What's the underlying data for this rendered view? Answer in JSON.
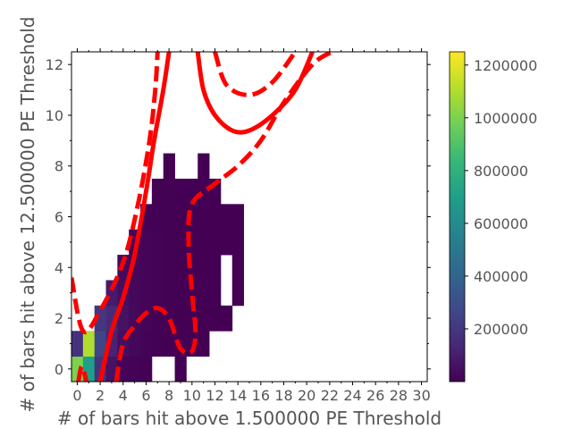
{
  "chart_data": {
    "type": "heatmap",
    "xlabel": "# of bars hit above 1.500000 PE Threshold",
    "ylabel": "# of bars hit above 12.500000 PE Threshold",
    "xlim": [
      -0.5,
      30.5
    ],
    "ylim": [
      -0.5,
      12.5
    ],
    "x_ticks": [
      "0",
      "2",
      "4",
      "6",
      "8",
      "10",
      "12",
      "14",
      "16",
      "18",
      "20",
      "22",
      "24",
      "26",
      "28",
      "30"
    ],
    "y_ticks": [
      "0",
      "2",
      "4",
      "6",
      "8",
      "10",
      "12"
    ],
    "colorbar": {
      "colormap": "viridis",
      "range": [
        0,
        1250000
      ],
      "ticks": [
        "200000",
        "400000",
        "600000",
        "800000",
        "1000000",
        "1200000"
      ]
    },
    "bins": [
      {
        "x": 0,
        "y": 0,
        "v": 1000000
      },
      {
        "x": 1,
        "y": 0,
        "v": 700000
      },
      {
        "x": 2,
        "y": 0,
        "v": 180000
      },
      {
        "x": 3,
        "y": 0,
        "v": 60000
      },
      {
        "x": 4,
        "y": 0,
        "v": 15000
      },
      {
        "x": 5,
        "y": 0,
        "v": 8000
      },
      {
        "x": 6,
        "y": 0,
        "v": 3000
      },
      {
        "x": 9,
        "y": 0,
        "v": 1000
      },
      {
        "x": 0,
        "y": 1,
        "v": 180000
      },
      {
        "x": 1,
        "y": 1,
        "v": 1100000
      },
      {
        "x": 2,
        "y": 1,
        "v": 260000
      },
      {
        "x": 3,
        "y": 1,
        "v": 120000
      },
      {
        "x": 4,
        "y": 1,
        "v": 50000
      },
      {
        "x": 5,
        "y": 1,
        "v": 20000
      },
      {
        "x": 6,
        "y": 1,
        "v": 8000
      },
      {
        "x": 7,
        "y": 1,
        "v": 3000
      },
      {
        "x": 8,
        "y": 1,
        "v": 1500
      },
      {
        "x": 9,
        "y": 1,
        "v": 1000
      },
      {
        "x": 10,
        "y": 1,
        "v": 800
      },
      {
        "x": 11,
        "y": 1,
        "v": 500
      },
      {
        "x": 2,
        "y": 2,
        "v": 200000
      },
      {
        "x": 3,
        "y": 2,
        "v": 150000
      },
      {
        "x": 4,
        "y": 2,
        "v": 60000
      },
      {
        "x": 5,
        "y": 2,
        "v": 30000
      },
      {
        "x": 6,
        "y": 2,
        "v": 12000
      },
      {
        "x": 7,
        "y": 2,
        "v": 5000
      },
      {
        "x": 8,
        "y": 2,
        "v": 2000
      },
      {
        "x": 9,
        "y": 2,
        "v": 1200
      },
      {
        "x": 10,
        "y": 2,
        "v": 700
      },
      {
        "x": 11,
        "y": 2,
        "v": 500
      },
      {
        "x": 12,
        "y": 2,
        "v": 400
      },
      {
        "x": 13,
        "y": 2,
        "v": 300
      },
      {
        "x": 3,
        "y": 3,
        "v": 90000
      },
      {
        "x": 4,
        "y": 3,
        "v": 50000
      },
      {
        "x": 5,
        "y": 3,
        "v": 25000
      },
      {
        "x": 6,
        "y": 3,
        "v": 12000
      },
      {
        "x": 7,
        "y": 3,
        "v": 6000
      },
      {
        "x": 8,
        "y": 3,
        "v": 3000
      },
      {
        "x": 9,
        "y": 3,
        "v": 1500
      },
      {
        "x": 10,
        "y": 3,
        "v": 800
      },
      {
        "x": 11,
        "y": 3,
        "v": 500
      },
      {
        "x": 12,
        "y": 3,
        "v": 400
      },
      {
        "x": 14,
        "y": 3,
        "v": 200
      },
      {
        "x": 4,
        "y": 4,
        "v": 30000
      },
      {
        "x": 5,
        "y": 4,
        "v": 20000
      },
      {
        "x": 6,
        "y": 4,
        "v": 10000
      },
      {
        "x": 7,
        "y": 4,
        "v": 6000
      },
      {
        "x": 8,
        "y": 4,
        "v": 3000
      },
      {
        "x": 9,
        "y": 4,
        "v": 1500
      },
      {
        "x": 10,
        "y": 4,
        "v": 800
      },
      {
        "x": 11,
        "y": 4,
        "v": 500
      },
      {
        "x": 12,
        "y": 4,
        "v": 300
      },
      {
        "x": 14,
        "y": 4,
        "v": 200
      },
      {
        "x": 5,
        "y": 5,
        "v": 15000
      },
      {
        "x": 6,
        "y": 5,
        "v": 10000
      },
      {
        "x": 7,
        "y": 5,
        "v": 6000
      },
      {
        "x": 8,
        "y": 5,
        "v": 3000
      },
      {
        "x": 9,
        "y": 5,
        "v": 1500
      },
      {
        "x": 10,
        "y": 5,
        "v": 800
      },
      {
        "x": 11,
        "y": 5,
        "v": 500
      },
      {
        "x": 12,
        "y": 5,
        "v": 400
      },
      {
        "x": 13,
        "y": 5,
        "v": 300
      },
      {
        "x": 14,
        "y": 5,
        "v": 200
      },
      {
        "x": 6,
        "y": 6,
        "v": 5000
      },
      {
        "x": 7,
        "y": 6,
        "v": 4000
      },
      {
        "x": 8,
        "y": 6,
        "v": 2500
      },
      {
        "x": 9,
        "y": 6,
        "v": 1500
      },
      {
        "x": 10,
        "y": 6,
        "v": 900
      },
      {
        "x": 11,
        "y": 6,
        "v": 500
      },
      {
        "x": 12,
        "y": 6,
        "v": 400
      },
      {
        "x": 13,
        "y": 6,
        "v": 300
      },
      {
        "x": 14,
        "y": 6,
        "v": 200
      },
      {
        "x": 7,
        "y": 7,
        "v": 2500
      },
      {
        "x": 8,
        "y": 7,
        "v": 2000
      },
      {
        "x": 9,
        "y": 7,
        "v": 1200
      },
      {
        "x": 10,
        "y": 7,
        "v": 800
      },
      {
        "x": 11,
        "y": 7,
        "v": 500
      },
      {
        "x": 12,
        "y": 7,
        "v": 300
      },
      {
        "x": 8,
        "y": 8,
        "v": 1000
      },
      {
        "x": 11,
        "y": 8,
        "v": 300
      }
    ],
    "contours": [
      {
        "style": "dashed",
        "points": [
          [
            -0.5,
            3.6
          ],
          [
            0.5,
            1.5
          ],
          [
            2,
            2.3
          ],
          [
            4,
            4.2
          ],
          [
            5.3,
            6.5
          ],
          [
            6.3,
            9
          ],
          [
            6.8,
            11
          ],
          [
            7,
            12.5
          ]
        ]
      },
      {
        "style": "solid",
        "points": [
          [
            2,
            -0.5
          ],
          [
            3,
            1.5
          ],
          [
            4,
            2.8
          ],
          [
            5,
            4.5
          ],
          [
            6,
            7
          ],
          [
            6.7,
            9
          ],
          [
            7.5,
            11
          ],
          [
            8,
            12.5
          ]
        ]
      },
      {
        "style": "dashed",
        "points": [
          [
            0.1,
            -0.5
          ],
          [
            0.4,
            0.1
          ],
          [
            0.8,
            -0.5
          ]
        ]
      },
      {
        "style": "dashed",
        "points": [
          [
            3.4,
            -0.5
          ],
          [
            4,
            1
          ],
          [
            5,
            1.7
          ],
          [
            6,
            2.2
          ],
          [
            7,
            2.4
          ],
          [
            8,
            2
          ],
          [
            9,
            0.8
          ],
          [
            10,
            0.7
          ],
          [
            10.3,
            1.5
          ],
          [
            10,
            3
          ],
          [
            9.7,
            5
          ],
          [
            10,
            6.5
          ],
          [
            12,
            7.3
          ],
          [
            14,
            8
          ],
          [
            16,
            9
          ],
          [
            18,
            10.5
          ],
          [
            20.5,
            12
          ],
          [
            22.2,
            12.5
          ]
        ]
      },
      {
        "style": "solid",
        "points": [
          [
            10.5,
            12.5
          ],
          [
            11,
            11
          ],
          [
            12,
            10
          ],
          [
            13.5,
            9.4
          ],
          [
            15,
            9.4
          ],
          [
            17,
            10
          ],
          [
            19,
            11
          ],
          [
            20.5,
            12.5
          ]
        ]
      },
      {
        "style": "dashed",
        "points": [
          [
            12,
            12.5
          ],
          [
            13,
            11.2
          ],
          [
            15,
            10.8
          ],
          [
            17,
            11.3
          ],
          [
            19,
            12.5
          ]
        ]
      }
    ]
  }
}
